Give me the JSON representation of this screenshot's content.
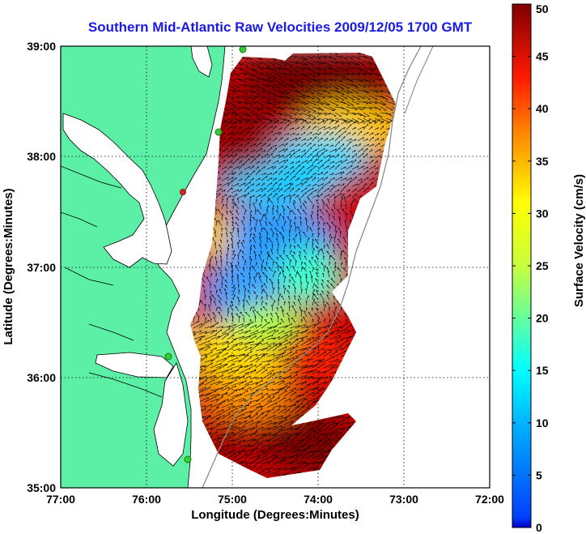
{
  "chart_data": {
    "type": "heatmap",
    "title": "Southern Mid-Atlantic Raw Velocities 2009/12/05 1700 GMT",
    "xlabel": "Longitude (Degrees:Minutes)",
    "ylabel": "Latitude (Degrees:Minutes)",
    "x_ticks": [
      "77:00",
      "76:00",
      "75:00",
      "74:00",
      "73:00",
      "72:00"
    ],
    "y_ticks": [
      "39:00",
      "38:00",
      "37:00",
      "36:00",
      "35:00"
    ],
    "xlim": [
      -77,
      -72
    ],
    "ylim": [
      35,
      39
    ],
    "grid": true,
    "colorbar": {
      "label": "Surface Velocity (cm/s)",
      "ticks": [
        "50",
        "45",
        "40",
        "35",
        "30",
        "25",
        "20",
        "15",
        "10",
        "5",
        "0"
      ],
      "range": [
        0,
        50
      ],
      "colormap": "jet"
    },
    "colors": {
      "land": "#5cf0a6",
      "coastline": "#000000",
      "shelf_contour": "#8c8c8c",
      "title": "#1a1ae6",
      "arrows": "#000000",
      "sites": "#33cc33",
      "site_highlight": "#e62020"
    }
  }
}
